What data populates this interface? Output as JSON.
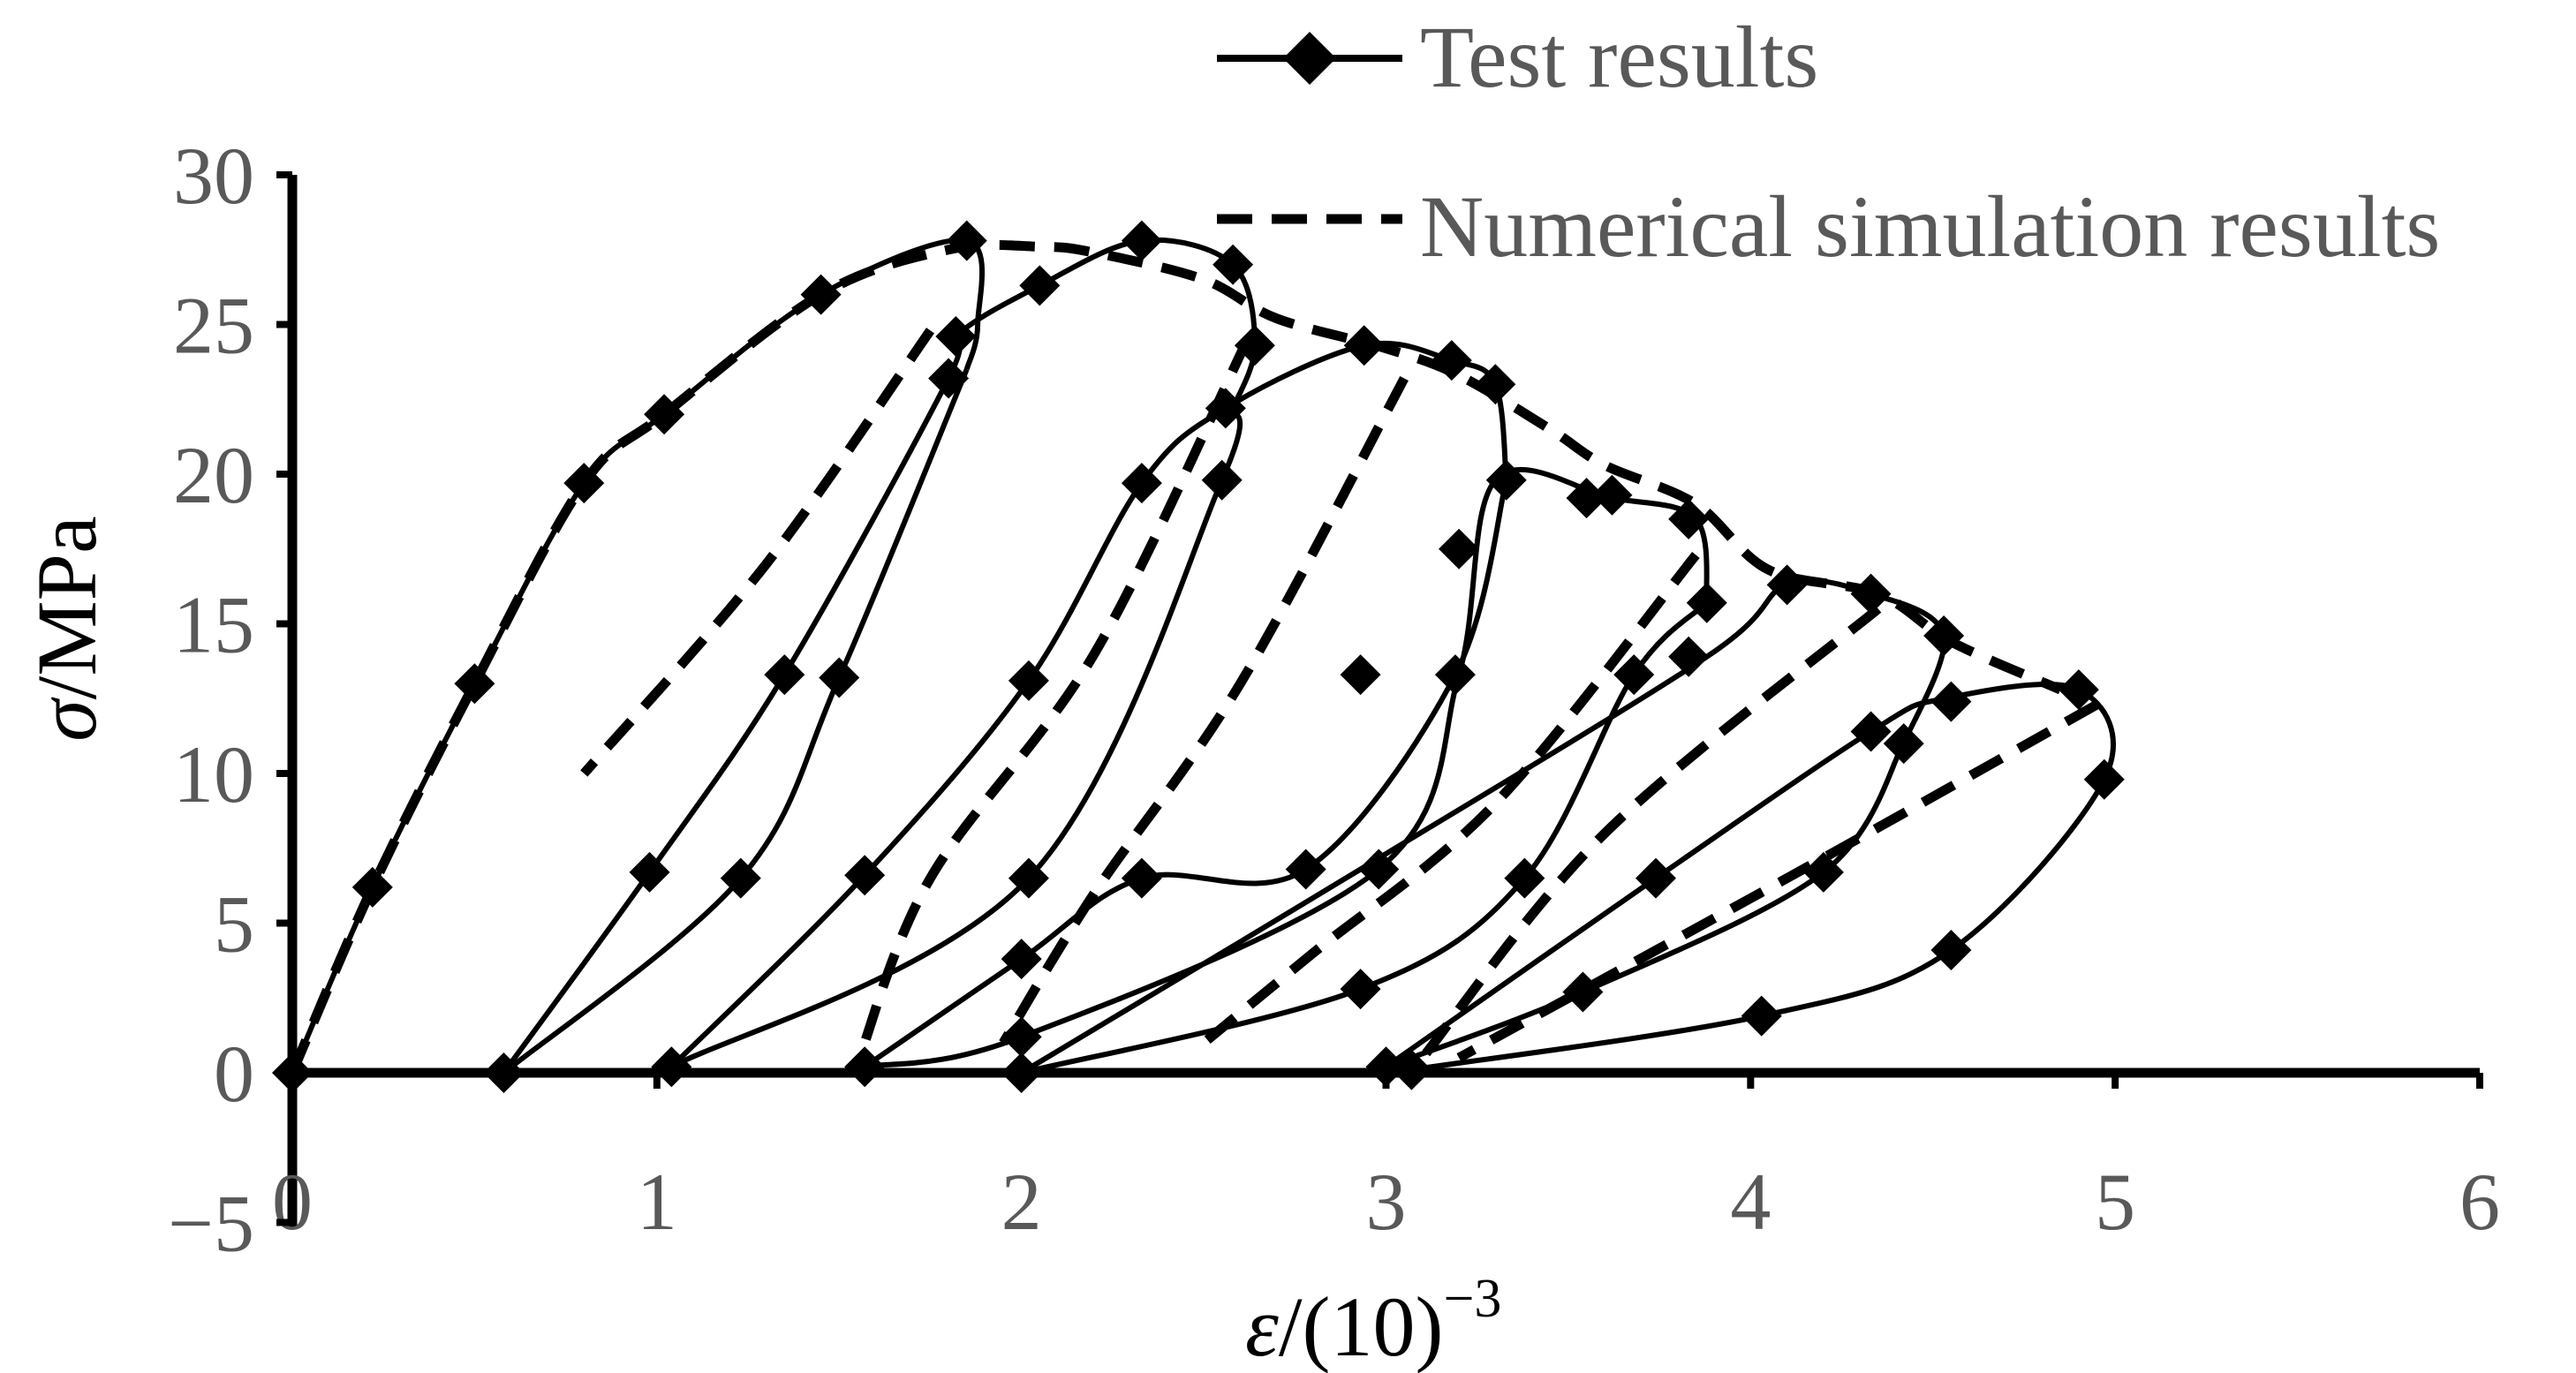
{
  "chart_data": {
    "type": "line",
    "title": "",
    "xlabel": {
      "symbol": "ε",
      "text": "/(10)",
      "superscript": "−3"
    },
    "ylabel": {
      "symbol": "σ",
      "text": "/MPa"
    },
    "xlim": [
      0,
      6
    ],
    "ylim": [
      -5,
      30
    ],
    "xticks": [
      0,
      1,
      2,
      3,
      4,
      5,
      6
    ],
    "yticks": [
      -5,
      0,
      5,
      10,
      15,
      20,
      25,
      30
    ],
    "ytick_labels": [
      "−5",
      "0",
      "5",
      "10",
      "15",
      "20",
      "25",
      "30"
    ],
    "grid": false,
    "legend_position": "top-right",
    "colors": {
      "axis": "#000000",
      "series": "#000000",
      "text": "#595959"
    },
    "series": [
      {
        "name": "Test results",
        "style": "solid-diamond",
        "segments": [
          {
            "name": "envelope-loop1",
            "points": [
              [
                0,
                0
              ],
              [
                0.22,
                6.2
              ],
              [
                0.5,
                13
              ],
              [
                0.8,
                19.7
              ],
              [
                1.02,
                22
              ],
              [
                1.45,
                26
              ],
              [
                1.85,
                27.8
              ],
              [
                1.88,
                25
              ],
              [
                1.85,
                23.5
              ]
            ]
          },
          {
            "name": "unload-1",
            "points": [
              [
                1.85,
                23.5
              ],
              [
                1.5,
                13.2
              ],
              [
                1.23,
                6.5
              ],
              [
                0.58,
                0
              ]
            ]
          },
          {
            "name": "reload-1",
            "points": [
              [
                0.58,
                0
              ],
              [
                0.98,
                6.7
              ],
              [
                1.35,
                13.3
              ],
              [
                1.8,
                23.2
              ],
              [
                1.82,
                24.6
              ],
              [
                2.05,
                26.3
              ],
              [
                2.33,
                27.8
              ],
              [
                2.58,
                27
              ],
              [
                2.64,
                24.3
              ],
              [
                2.58,
                22.2
              ]
            ]
          },
          {
            "name": "unload-2",
            "points": [
              [
                2.58,
                22.2
              ],
              [
                2.55,
                19.8
              ],
              [
                2.02,
                6.5
              ],
              [
                1.04,
                0.2
              ]
            ]
          },
          {
            "name": "reload-2",
            "points": [
              [
                1.04,
                0.2
              ],
              [
                1.57,
                6.6
              ],
              [
                2.02,
                13.1
              ],
              [
                2.33,
                19.7
              ],
              [
                2.56,
                22.2
              ],
              [
                2.94,
                24.3
              ],
              [
                3.18,
                23.8
              ],
              [
                3.3,
                23
              ],
              [
                3.33,
                19.8
              ]
            ]
          },
          {
            "name": "unload-3",
            "points": [
              [
                3.33,
                19.8
              ],
              [
                3.19,
                13.3
              ],
              [
                2.78,
                6.8
              ],
              [
                2.33,
                6.5
              ],
              [
                2.0,
                3.8
              ],
              [
                1.57,
                0.2
              ]
            ]
          },
          {
            "name": "reload-3",
            "points": [
              [
                1.57,
                0.2
              ],
              [
                2.0,
                1.2
              ],
              [
                2.98,
                6.8
              ],
              [
                3.2,
                13.3
              ],
              [
                3.3,
                19.8
              ],
              [
                3.62,
                19.2
              ],
              [
                3.85,
                18.5
              ],
              [
                3.88,
                15.7
              ]
            ]
          },
          {
            "name": "unload-4",
            "points": [
              [
                3.88,
                15.7
              ],
              [
                3.68,
                13.3
              ],
              [
                3.38,
                6.5
              ],
              [
                2.93,
                2.8
              ],
              [
                2.0,
                0
              ]
            ]
          },
          {
            "name": "reload-4",
            "points": [
              [
                2.0,
                0
              ],
              [
                2.93,
                6.8
              ],
              [
                3.88,
                13.9
              ],
              [
                4.1,
                16.3
              ],
              [
                4.33,
                16
              ],
              [
                4.53,
                14.6
              ],
              [
                4.42,
                11
              ]
            ]
          },
          {
            "name": "unload-5",
            "points": [
              [
                4.42,
                11
              ],
              [
                4.2,
                6.7
              ],
              [
                3.54,
                2.7
              ],
              [
                3.0,
                0.2
              ]
            ]
          },
          {
            "name": "reload-5",
            "points": [
              [
                3.0,
                0.2
              ],
              [
                3.74,
                6.5
              ],
              [
                4.33,
                11.4
              ],
              [
                4.53,
                12.5
              ],
              [
                4.9,
                12.8
              ],
              [
                4.97,
                9.8
              ],
              [
                4.55,
                4.1
              ],
              [
                4.03,
                1.9
              ],
              [
                3.07,
                0.1
              ]
            ]
          }
        ],
        "markers": [
          [
            0,
            0
          ],
          [
            0.22,
            6.2
          ],
          [
            0.5,
            13
          ],
          [
            0.8,
            19.7
          ],
          [
            1.02,
            22
          ],
          [
            1.45,
            26
          ],
          [
            1.85,
            27.8
          ],
          [
            1.82,
            24.6
          ],
          [
            1.8,
            23.2
          ],
          [
            1.5,
            13.2
          ],
          [
            1.35,
            13.3
          ],
          [
            1.23,
            6.5
          ],
          [
            0.98,
            6.7
          ],
          [
            0.58,
            0
          ],
          [
            1.04,
            0.2
          ],
          [
            2.05,
            26.3
          ],
          [
            2.33,
            27.8
          ],
          [
            2.58,
            27
          ],
          [
            2.64,
            24.3
          ],
          [
            2.56,
            22.2
          ],
          [
            2.55,
            19.8
          ],
          [
            2.33,
            19.7
          ],
          [
            2.02,
            13.1
          ],
          [
            2.02,
            6.5
          ],
          [
            1.57,
            6.6
          ],
          [
            1.57,
            0.2
          ],
          [
            2.0,
            3.8
          ],
          [
            2.0,
            1.2
          ],
          [
            2.0,
            0
          ],
          [
            2.33,
            6.5
          ],
          [
            2.94,
            24.3
          ],
          [
            3.18,
            23.8
          ],
          [
            3.3,
            23
          ],
          [
            3.33,
            19.8
          ],
          [
            3.2,
            17.5
          ],
          [
            3.19,
            13.3
          ],
          [
            2.93,
            13.3
          ],
          [
            2.98,
            6.8
          ],
          [
            2.78,
            6.8
          ],
          [
            2.93,
            2.8
          ],
          [
            3.0,
            0.2
          ],
          [
            3.07,
            0.1
          ],
          [
            3.38,
            6.5
          ],
          [
            3.55,
            19.2
          ],
          [
            3.62,
            19.3
          ],
          [
            3.83,
            18.5
          ],
          [
            3.88,
            15.7
          ],
          [
            3.83,
            13.9
          ],
          [
            3.68,
            13.3
          ],
          [
            3.74,
            6.5
          ],
          [
            3.54,
            2.7
          ],
          [
            4.03,
            1.9
          ],
          [
            4.1,
            16.3
          ],
          [
            4.33,
            16
          ],
          [
            4.53,
            14.6
          ],
          [
            4.55,
            12.4
          ],
          [
            4.33,
            11.4
          ],
          [
            4.42,
            11
          ],
          [
            4.2,
            6.7
          ],
          [
            4.55,
            4.1
          ],
          [
            4.9,
            12.8
          ],
          [
            4.97,
            9.8
          ]
        ]
      },
      {
        "name": "Numerical simulation results",
        "style": "dashed",
        "segments": [
          {
            "name": "envelope",
            "points": [
              [
                0,
                0
              ],
              [
                0.22,
                6.2
              ],
              [
                0.5,
                13
              ],
              [
                0.8,
                19.7
              ],
              [
                1.02,
                22
              ],
              [
                1.45,
                26
              ],
              [
                1.8,
                27.5
              ],
              [
                2.05,
                27.6
              ],
              [
                2.2,
                27.4
              ],
              [
                2.5,
                26.5
              ],
              [
                2.7,
                25.2
              ],
              [
                3.0,
                24.2
              ],
              [
                3.2,
                23.3
              ],
              [
                3.45,
                21.5
              ],
              [
                3.6,
                20.3
              ],
              [
                3.85,
                19
              ],
              [
                4.05,
                16.8
              ],
              [
                4.35,
                16
              ],
              [
                4.55,
                14.4
              ],
              [
                4.85,
                12.8
              ]
            ]
          },
          {
            "name": "unload-1",
            "points": [
              [
                1.75,
                24.8
              ],
              [
                1.3,
                17
              ],
              [
                0.8,
                10
              ]
            ]
          },
          {
            "name": "unload-2",
            "points": [
              [
                2.62,
                24.5
              ],
              [
                2.2,
                14
              ],
              [
                1.75,
                6.5
              ],
              [
                1.55,
                0.3
              ]
            ]
          },
          {
            "name": "unload-3",
            "points": [
              [
                3.05,
                23.2
              ],
              [
                2.6,
                13
              ],
              [
                2.2,
                6
              ],
              [
                1.95,
                1
              ]
            ]
          },
          {
            "name": "unload-4",
            "points": [
              [
                3.85,
                17.3
              ],
              [
                3.3,
                9
              ],
              [
                2.8,
                4
              ],
              [
                2.5,
                1
              ]
            ]
          },
          {
            "name": "unload-5",
            "points": [
              [
                4.35,
                15.5
              ],
              [
                3.6,
                8
              ],
              [
                3.1,
                0.5
              ]
            ]
          },
          {
            "name": "unload-6",
            "points": [
              [
                4.95,
                12.3
              ],
              [
                4.1,
                6.5
              ],
              [
                3.2,
                0.5
              ]
            ]
          }
        ]
      }
    ]
  }
}
